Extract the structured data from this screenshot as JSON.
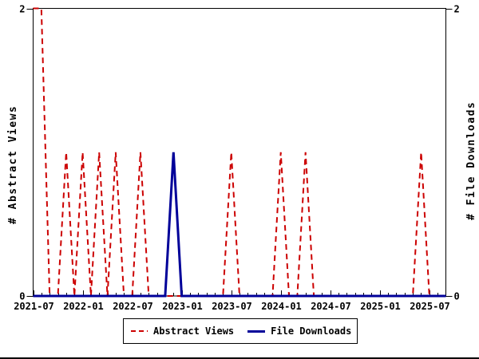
{
  "chart_data": {
    "type": "line",
    "title": "",
    "ylabel": "# Abstract Views",
    "y2label": "# File Downloads",
    "ylim": [
      0,
      2
    ],
    "y2lim": [
      0,
      2
    ],
    "grid": false,
    "legend_position": "bottom-center",
    "background_color": "#ffffff",
    "axis_color": "#000000",
    "y_ticks": [
      {
        "label": "0",
        "value": 0
      },
      {
        "label": "2",
        "value": 2
      }
    ],
    "x_major_ticks": [
      {
        "label": "2021-07",
        "month_index": 0
      },
      {
        "label": "2022-01",
        "month_index": 6
      },
      {
        "label": "2022-07",
        "month_index": 12
      },
      {
        "label": "2023-01",
        "month_index": 18
      },
      {
        "label": "2023-07",
        "month_index": 24
      },
      {
        "label": "2024-01",
        "month_index": 30
      },
      {
        "label": "2024-07",
        "month_index": 36
      },
      {
        "label": "2025-01",
        "month_index": 42
      },
      {
        "label": "2025-07",
        "month_index": 48
      }
    ],
    "months": [
      "2021-07",
      "2021-08",
      "2021-09",
      "2021-10",
      "2021-11",
      "2021-12",
      "2022-01",
      "2022-02",
      "2022-03",
      "2022-04",
      "2022-05",
      "2022-06",
      "2022-07",
      "2022-08",
      "2022-09",
      "2022-10",
      "2022-11",
      "2022-12",
      "2023-01",
      "2023-02",
      "2023-03",
      "2023-04",
      "2023-05",
      "2023-06",
      "2023-07",
      "2023-08",
      "2023-09",
      "2023-10",
      "2023-11",
      "2023-12",
      "2024-01",
      "2024-02",
      "2024-03",
      "2024-04",
      "2024-05",
      "2024-06",
      "2024-07",
      "2024-08",
      "2024-09",
      "2024-10",
      "2024-11",
      "2024-12",
      "2025-01",
      "2025-02",
      "2025-03",
      "2025-04",
      "2025-05",
      "2025-06",
      "2025-07",
      "2025-08",
      "2025-09"
    ],
    "series": [
      {
        "name": "Abstract Views",
        "color": "#cc0000",
        "style": "dashed",
        "axis": "left",
        "values": [
          2,
          2,
          0,
          0,
          1,
          0,
          1,
          0,
          1,
          0,
          1,
          0,
          0,
          1,
          0,
          0,
          0,
          0,
          0,
          0,
          0,
          0,
          0,
          0,
          1,
          0,
          0,
          0,
          0,
          0,
          1,
          0,
          0,
          1,
          0,
          0,
          0,
          0,
          0,
          0,
          0,
          0,
          0,
          0,
          0,
          0,
          0,
          1,
          0,
          0,
          0
        ]
      },
      {
        "name": "File Downloads",
        "color": "#000099",
        "style": "solid",
        "axis": "right",
        "values": [
          0,
          0,
          0,
          0,
          0,
          0,
          0,
          0,
          0,
          0,
          0,
          0,
          0,
          0,
          0,
          0,
          0,
          1,
          0,
          0,
          0,
          0,
          0,
          0,
          0,
          0,
          0,
          0,
          0,
          0,
          0,
          0,
          0,
          0,
          0,
          0,
          0,
          0,
          0,
          0,
          0,
          0,
          0,
          0,
          0,
          0,
          0,
          0,
          0,
          0,
          0
        ]
      }
    ]
  }
}
